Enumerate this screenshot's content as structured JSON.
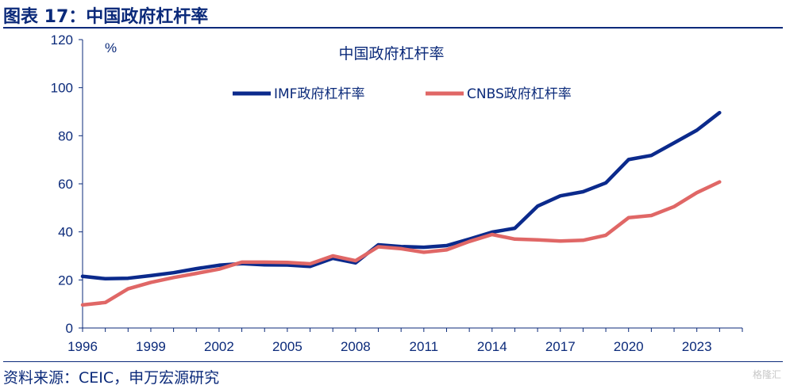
{
  "figure": {
    "title": "图表 17：中国政府杠杆率",
    "source": "资料来源：CEIC，申万宏源研究",
    "watermark": "格隆汇"
  },
  "colors": {
    "imf": "#0b2a8c",
    "cnbs": "#e06766",
    "text": "#0b2a7a",
    "axis": "#0b2a7a"
  },
  "chart_data": {
    "type": "line",
    "title": "中国政府杠杆率",
    "unit_label": "%",
    "ylim": [
      0,
      120
    ],
    "yticks": [
      0,
      20,
      40,
      60,
      80,
      100,
      120
    ],
    "xlim": [
      1996,
      2025
    ],
    "xticks": [
      1996,
      1999,
      2002,
      2005,
      2008,
      2011,
      2014,
      2017,
      2020,
      2023
    ],
    "legend_placement": "top",
    "grid": false,
    "series": [
      {
        "name": "IMF政府杠杆率",
        "x": [
          1996,
          1997,
          1998,
          1999,
          2000,
          2001,
          2002,
          2003,
          2004,
          2005,
          2006,
          2007,
          2008,
          2009,
          2010,
          2011,
          2012,
          2013,
          2014,
          2015,
          2016,
          2017,
          2018,
          2019,
          2020,
          2021,
          2022,
          2023,
          2024
        ],
        "values": [
          21.5,
          20.5,
          20.7,
          21.8,
          23.0,
          24.7,
          26.1,
          26.8,
          26.3,
          26.2,
          25.6,
          29.0,
          27.1,
          34.6,
          33.9,
          33.6,
          34.3,
          37.0,
          39.9,
          41.5,
          50.7,
          55.0,
          56.7,
          60.4,
          70.1,
          71.8,
          77.0,
          82.3,
          89.6
        ]
      },
      {
        "name": "CNBS政府杠杆率",
        "x": [
          1996,
          1997,
          1998,
          1999,
          2000,
          2001,
          2002,
          2003,
          2004,
          2005,
          2006,
          2007,
          2008,
          2009,
          2010,
          2011,
          2012,
          2013,
          2014,
          2015,
          2016,
          2017,
          2018,
          2019,
          2020,
          2021,
          2022,
          2023,
          2024
        ],
        "values": [
          9.6,
          10.6,
          16.3,
          19.0,
          21.0,
          22.7,
          24.5,
          27.4,
          27.4,
          27.3,
          26.7,
          30.0,
          28.0,
          33.8,
          33.0,
          31.5,
          32.5,
          36.0,
          38.9,
          37.0,
          36.7,
          36.2,
          36.5,
          38.6,
          45.9,
          46.8,
          50.5,
          56.3,
          60.8
        ]
      }
    ]
  }
}
